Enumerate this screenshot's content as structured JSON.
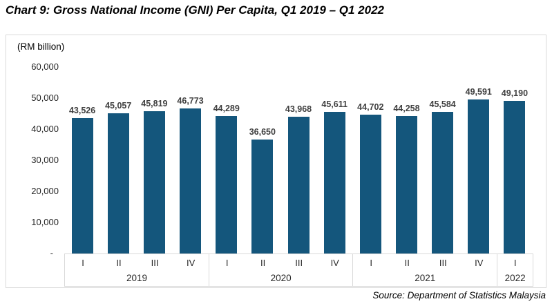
{
  "title": "Chart 9: Gross National Income (GNI) Per Capita, Q1 2019 – Q1 2022",
  "unit_label": "(RM billion)",
  "source": "Source: Department of Statistics Malaysia",
  "colors": {
    "bar": "#14567C",
    "frame_border": "#D9D9D9",
    "value_label": "#404040"
  },
  "y_axis": {
    "ticks": [
      "60,000",
      "50,000",
      "40,000",
      "30,000",
      "20,000",
      "10,000",
      "-"
    ]
  },
  "chart_data": {
    "type": "bar",
    "title": "Chart 9: Gross National Income (GNI) Per Capita, Q1 2019 – Q1 2022",
    "ylabel": "(RM billion)",
    "ylim": [
      0,
      60000
    ],
    "y_tick_step": 10000,
    "grid": false,
    "legend": false,
    "bar_color": "#14567C",
    "groups": [
      {
        "year": "2019",
        "quarters": [
          "I",
          "II",
          "III",
          "IV"
        ],
        "values": [
          43526,
          45057,
          45819,
          46773
        ],
        "labels": [
          "43,526",
          "45,057",
          "45,819",
          "46,773"
        ]
      },
      {
        "year": "2020",
        "quarters": [
          "I",
          "II",
          "III",
          "IV"
        ],
        "values": [
          44289,
          36650,
          43968,
          45611
        ],
        "labels": [
          "44,289",
          "36,650",
          "43,968",
          "45,611"
        ]
      },
      {
        "year": "2021",
        "quarters": [
          "I",
          "II",
          "III",
          "IV"
        ],
        "values": [
          44702,
          44258,
          45584,
          49591
        ],
        "labels": [
          "44,702",
          "44,258",
          "45,584",
          "49,591"
        ]
      },
      {
        "year": "2022",
        "quarters": [
          "I"
        ],
        "values": [
          49190
        ],
        "labels": [
          "49,190"
        ]
      }
    ]
  }
}
